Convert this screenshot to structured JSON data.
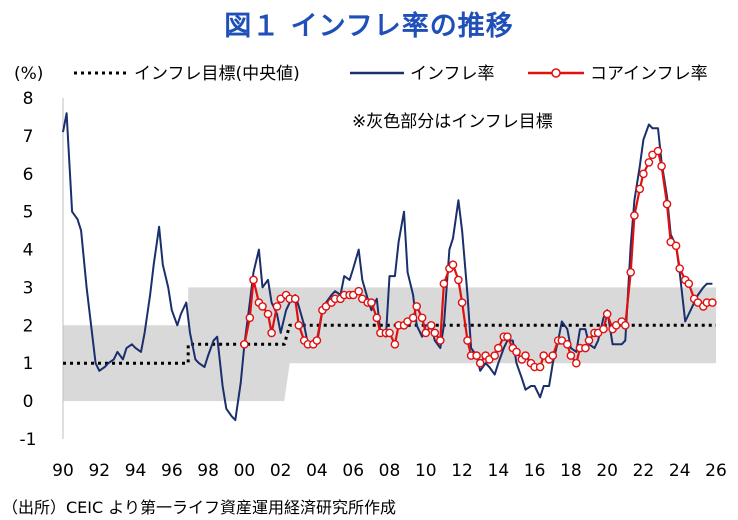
{
  "title": "図１ インフレ率の推移",
  "source": "（出所）CEIC より第一ライフ資産運用経済研究所作成",
  "chart_data": {
    "type": "line",
    "title": "図１ インフレ率の推移",
    "ylabel": "(%)",
    "xlabel": "",
    "xlim": [
      1990,
      2026
    ],
    "ylim": [
      -1,
      8
    ],
    "yticks": [
      "-1",
      "0",
      "1",
      "2",
      "3",
      "4",
      "5",
      "6",
      "7",
      "8"
    ],
    "xticks": [
      "90",
      "92",
      "94",
      "96",
      "98",
      "00",
      "02",
      "04",
      "06",
      "08",
      "10",
      "12",
      "14",
      "16",
      "18",
      "20",
      "22",
      "24",
      "26"
    ],
    "annotation": "※灰色部分はインフレ目標",
    "grid": false,
    "legend_placement": "top",
    "target_band": {
      "upper": [
        [
          1990,
          2.0
        ],
        [
          1996.9,
          2.0
        ],
        [
          1996.9,
          3.0
        ],
        [
          2026,
          3.0
        ]
      ],
      "lower": [
        [
          1990,
          0.0
        ],
        [
          2002.2,
          0.0
        ],
        [
          2002.5,
          1.0
        ],
        [
          2026,
          1.0
        ]
      ]
    },
    "series": [
      {
        "name": "インフレ目標(中央値)",
        "style": "dotted",
        "color": "#000000",
        "points": [
          [
            1990,
            1.0
          ],
          [
            1996.9,
            1.0
          ],
          [
            1996.9,
            1.5
          ],
          [
            2002.2,
            1.5
          ],
          [
            2002.5,
            2.0
          ],
          [
            2026,
            2.0
          ]
        ]
      },
      {
        "name": "インフレ率",
        "style": "solid",
        "color": "#1a2f6b",
        "points": [
          [
            1990.0,
            7.1
          ],
          [
            1990.2,
            7.6
          ],
          [
            1990.5,
            5.0
          ],
          [
            1990.8,
            4.8
          ],
          [
            1991.0,
            4.5
          ],
          [
            1991.3,
            3.0
          ],
          [
            1991.5,
            2.2
          ],
          [
            1991.8,
            1.0
          ],
          [
            1992.0,
            0.8
          ],
          [
            1992.3,
            0.9
          ],
          [
            1992.5,
            1.0
          ],
          [
            1992.8,
            1.1
          ],
          [
            1993.0,
            1.3
          ],
          [
            1993.3,
            1.1
          ],
          [
            1993.5,
            1.4
          ],
          [
            1993.8,
            1.5
          ],
          [
            1994.0,
            1.4
          ],
          [
            1994.3,
            1.3
          ],
          [
            1994.5,
            1.8
          ],
          [
            1994.8,
            2.8
          ],
          [
            1995.0,
            3.6
          ],
          [
            1995.3,
            4.6
          ],
          [
            1995.5,
            3.6
          ],
          [
            1995.8,
            3.0
          ],
          [
            1996.0,
            2.4
          ],
          [
            1996.3,
            2.0
          ],
          [
            1996.5,
            2.3
          ],
          [
            1996.8,
            2.6
          ],
          [
            1997.0,
            1.8
          ],
          [
            1997.3,
            1.1
          ],
          [
            1997.5,
            1.0
          ],
          [
            1997.8,
            0.9
          ],
          [
            1998.0,
            1.2
          ],
          [
            1998.3,
            1.6
          ],
          [
            1998.5,
            1.7
          ],
          [
            1998.8,
            0.4
          ],
          [
            1999.0,
            -0.2
          ],
          [
            1999.3,
            -0.4
          ],
          [
            1999.5,
            -0.5
          ],
          [
            1999.8,
            0.5
          ],
          [
            2000.0,
            1.5
          ],
          [
            2000.3,
            2.6
          ],
          [
            2000.5,
            3.4
          ],
          [
            2000.8,
            4.0
          ],
          [
            2001.0,
            3.0
          ],
          [
            2001.3,
            3.2
          ],
          [
            2001.5,
            2.6
          ],
          [
            2001.8,
            2.3
          ],
          [
            2002.0,
            1.8
          ],
          [
            2002.3,
            2.4
          ],
          [
            2002.5,
            2.6
          ],
          [
            2002.8,
            2.8
          ],
          [
            2003.0,
            2.5
          ],
          [
            2003.3,
            2.0
          ],
          [
            2003.5,
            1.5
          ],
          [
            2003.8,
            1.6
          ],
          [
            2004.0,
            1.5
          ],
          [
            2004.3,
            2.4
          ],
          [
            2004.5,
            2.6
          ],
          [
            2004.8,
            2.8
          ],
          [
            2005.0,
            2.9
          ],
          [
            2005.3,
            2.8
          ],
          [
            2005.5,
            3.3
          ],
          [
            2005.8,
            3.2
          ],
          [
            2006.0,
            3.5
          ],
          [
            2006.3,
            4.0
          ],
          [
            2006.5,
            3.2
          ],
          [
            2006.8,
            2.7
          ],
          [
            2007.0,
            2.4
          ],
          [
            2007.3,
            2.7
          ],
          [
            2007.5,
            1.8
          ],
          [
            2007.8,
            1.7
          ],
          [
            2008.0,
            3.3
          ],
          [
            2008.3,
            3.3
          ],
          [
            2008.5,
            4.2
          ],
          [
            2008.8,
            5.0
          ],
          [
            2009.0,
            3.4
          ],
          [
            2009.3,
            2.8
          ],
          [
            2009.5,
            2.0
          ],
          [
            2009.8,
            1.7
          ],
          [
            2010.0,
            2.0
          ],
          [
            2010.3,
            2.0
          ],
          [
            2010.5,
            1.6
          ],
          [
            2010.8,
            1.4
          ],
          [
            2011.0,
            2.0
          ],
          [
            2011.3,
            4.0
          ],
          [
            2011.5,
            4.3
          ],
          [
            2011.8,
            5.3
          ],
          [
            2012.0,
            4.5
          ],
          [
            2012.3,
            2.8
          ],
          [
            2012.5,
            1.4
          ],
          [
            2012.8,
            1.2
          ],
          [
            2013.0,
            0.8
          ],
          [
            2013.3,
            1.0
          ],
          [
            2013.5,
            0.9
          ],
          [
            2013.8,
            0.7
          ],
          [
            2014.0,
            1.0
          ],
          [
            2014.3,
            1.4
          ],
          [
            2014.5,
            1.6
          ],
          [
            2014.8,
            1.6
          ],
          [
            2015.0,
            1.0
          ],
          [
            2015.3,
            0.6
          ],
          [
            2015.5,
            0.3
          ],
          [
            2015.8,
            0.4
          ],
          [
            2016.0,
            0.4
          ],
          [
            2016.3,
            0.1
          ],
          [
            2016.5,
            0.4
          ],
          [
            2016.8,
            0.4
          ],
          [
            2017.0,
            1.0
          ],
          [
            2017.3,
            1.6
          ],
          [
            2017.5,
            2.1
          ],
          [
            2017.8,
            1.9
          ],
          [
            2018.0,
            1.4
          ],
          [
            2018.3,
            1.3
          ],
          [
            2018.5,
            1.9
          ],
          [
            2018.8,
            1.9
          ],
          [
            2019.0,
            1.5
          ],
          [
            2019.3,
            1.4
          ],
          [
            2019.5,
            1.6
          ],
          [
            2019.8,
            2.2
          ],
          [
            2020.0,
            2.4
          ],
          [
            2020.3,
            1.5
          ],
          [
            2020.5,
            1.5
          ],
          [
            2020.8,
            1.5
          ],
          [
            2021.0,
            1.6
          ],
          [
            2021.3,
            4.1
          ],
          [
            2021.5,
            5.3
          ],
          [
            2021.8,
            6.2
          ],
          [
            2022.0,
            6.9
          ],
          [
            2022.3,
            7.3
          ],
          [
            2022.5,
            7.2
          ],
          [
            2022.8,
            7.2
          ],
          [
            2023.0,
            6.3
          ],
          [
            2023.3,
            5.4
          ],
          [
            2023.5,
            4.4
          ],
          [
            2023.8,
            4.1
          ],
          [
            2024.0,
            3.4
          ],
          [
            2024.3,
            2.1
          ],
          [
            2024.5,
            2.3
          ],
          [
            2024.8,
            2.6
          ],
          [
            2025.0,
            2.8
          ],
          [
            2025.3,
            3.0
          ],
          [
            2025.5,
            3.1
          ],
          [
            2025.8,
            3.1
          ]
        ]
      },
      {
        "name": "コアインフレ率",
        "style": "solid-marker",
        "color": "#e01010",
        "points": [
          [
            2000.0,
            1.5
          ],
          [
            2000.3,
            2.2
          ],
          [
            2000.5,
            3.2
          ],
          [
            2000.8,
            2.6
          ],
          [
            2001.0,
            2.5
          ],
          [
            2001.3,
            2.3
          ],
          [
            2001.5,
            1.8
          ],
          [
            2001.8,
            2.5
          ],
          [
            2002.0,
            2.7
          ],
          [
            2002.3,
            2.8
          ],
          [
            2002.5,
            2.7
          ],
          [
            2002.8,
            2.7
          ],
          [
            2003.0,
            2.0
          ],
          [
            2003.3,
            1.6
          ],
          [
            2003.5,
            1.5
          ],
          [
            2003.8,
            1.5
          ],
          [
            2004.0,
            1.6
          ],
          [
            2004.3,
            2.4
          ],
          [
            2004.5,
            2.5
          ],
          [
            2004.8,
            2.6
          ],
          [
            2005.0,
            2.7
          ],
          [
            2005.3,
            2.7
          ],
          [
            2005.5,
            2.8
          ],
          [
            2005.8,
            2.8
          ],
          [
            2006.0,
            2.8
          ],
          [
            2006.3,
            2.9
          ],
          [
            2006.5,
            2.7
          ],
          [
            2006.8,
            2.6
          ],
          [
            2007.0,
            2.6
          ],
          [
            2007.3,
            2.2
          ],
          [
            2007.5,
            1.8
          ],
          [
            2007.8,
            1.8
          ],
          [
            2008.0,
            1.8
          ],
          [
            2008.3,
            1.5
          ],
          [
            2008.5,
            2.0
          ],
          [
            2008.8,
            2.0
          ],
          [
            2009.0,
            2.1
          ],
          [
            2009.3,
            2.2
          ],
          [
            2009.5,
            2.5
          ],
          [
            2009.8,
            2.2
          ],
          [
            2010.0,
            1.8
          ],
          [
            2010.3,
            2.0
          ],
          [
            2010.5,
            1.8
          ],
          [
            2010.8,
            1.6
          ],
          [
            2011.0,
            3.1
          ],
          [
            2011.3,
            3.5
          ],
          [
            2011.5,
            3.6
          ],
          [
            2011.8,
            3.2
          ],
          [
            2012.0,
            2.6
          ],
          [
            2012.3,
            1.6
          ],
          [
            2012.5,
            1.2
          ],
          [
            2012.8,
            1.2
          ],
          [
            2013.0,
            1.0
          ],
          [
            2013.3,
            1.2
          ],
          [
            2013.5,
            1.1
          ],
          [
            2013.8,
            1.2
          ],
          [
            2014.0,
            1.4
          ],
          [
            2014.3,
            1.7
          ],
          [
            2014.5,
            1.7
          ],
          [
            2014.8,
            1.4
          ],
          [
            2015.0,
            1.3
          ],
          [
            2015.3,
            1.1
          ],
          [
            2015.5,
            1.2
          ],
          [
            2015.8,
            1.0
          ],
          [
            2016.0,
            0.9
          ],
          [
            2016.3,
            0.9
          ],
          [
            2016.5,
            1.2
          ],
          [
            2016.8,
            1.1
          ],
          [
            2017.0,
            1.2
          ],
          [
            2017.3,
            1.6
          ],
          [
            2017.5,
            1.6
          ],
          [
            2017.8,
            1.5
          ],
          [
            2018.0,
            1.2
          ],
          [
            2018.3,
            1.0
          ],
          [
            2018.5,
            1.4
          ],
          [
            2018.8,
            1.4
          ],
          [
            2019.0,
            1.6
          ],
          [
            2019.3,
            1.8
          ],
          [
            2019.5,
            1.8
          ],
          [
            2019.8,
            1.9
          ],
          [
            2020.0,
            2.3
          ],
          [
            2020.3,
            1.9
          ],
          [
            2020.5,
            2.0
          ],
          [
            2020.8,
            2.1
          ],
          [
            2021.0,
            2.0
          ],
          [
            2021.3,
            3.4
          ],
          [
            2021.5,
            4.9
          ],
          [
            2021.8,
            5.6
          ],
          [
            2022.0,
            6.0
          ],
          [
            2022.3,
            6.3
          ],
          [
            2022.5,
            6.5
          ],
          [
            2022.8,
            6.6
          ],
          [
            2023.0,
            6.2
          ],
          [
            2023.3,
            5.2
          ],
          [
            2023.5,
            4.2
          ],
          [
            2023.8,
            4.1
          ],
          [
            2024.0,
            3.5
          ],
          [
            2024.3,
            3.2
          ],
          [
            2024.5,
            3.1
          ],
          [
            2024.8,
            2.7
          ],
          [
            2025.0,
            2.6
          ],
          [
            2025.3,
            2.5
          ],
          [
            2025.5,
            2.6
          ],
          [
            2025.8,
            2.6
          ]
        ]
      }
    ]
  }
}
